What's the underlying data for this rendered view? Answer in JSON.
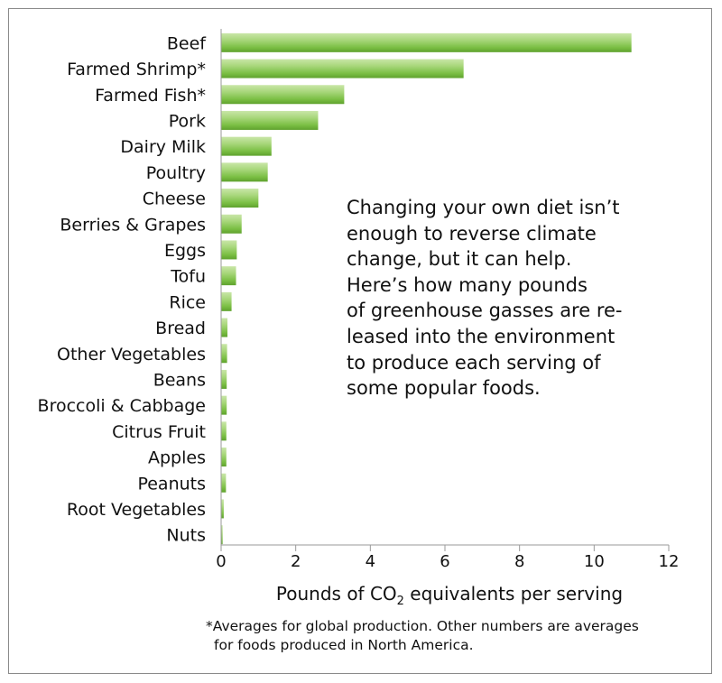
{
  "chart_data": {
    "type": "bar",
    "orientation": "horizontal",
    "categories": [
      "Beef",
      "Farmed Shrimp*",
      "Farmed Fish*",
      "Pork",
      "Dairy Milk",
      "Poultry",
      "Cheese",
      "Berries & Grapes",
      "Eggs",
      "Tofu",
      "Rice",
      "Bread",
      "Other Vegetables",
      "Beans",
      "Broccoli & Cabbage",
      "Citrus Fruit",
      "Apples",
      "Peanuts",
      "Root Vegetables",
      "Nuts"
    ],
    "values": [
      11.0,
      6.5,
      3.3,
      2.6,
      1.35,
      1.25,
      1.0,
      0.55,
      0.42,
      0.4,
      0.28,
      0.17,
      0.16,
      0.15,
      0.15,
      0.14,
      0.14,
      0.13,
      0.07,
      0.04
    ],
    "xlabel": "Pounds of CO",
    "xlabel_subscript": "2",
    "xlabel_suffix": " equivalents per serving",
    "xlim": [
      0,
      12
    ],
    "xticks": [
      "0",
      "2",
      "4",
      "6",
      "8",
      "10",
      "12"
    ],
    "grid": false,
    "bar_color": "#7bbf44",
    "bar_highlight": "#c9e6a8"
  },
  "annotation": {
    "lines": [
      "Changing your own diet isn’t",
      "enough to reverse climate",
      "change, but it can help.",
      "Here’s how many pounds",
      "of greenhouse gasses are re-",
      "leased into the environment",
      "to produce each serving of",
      "some popular foods."
    ]
  },
  "footnote": {
    "line1": "*Averages for global production. Other numbers are averages",
    "line2": "for foods produced in North America."
  }
}
